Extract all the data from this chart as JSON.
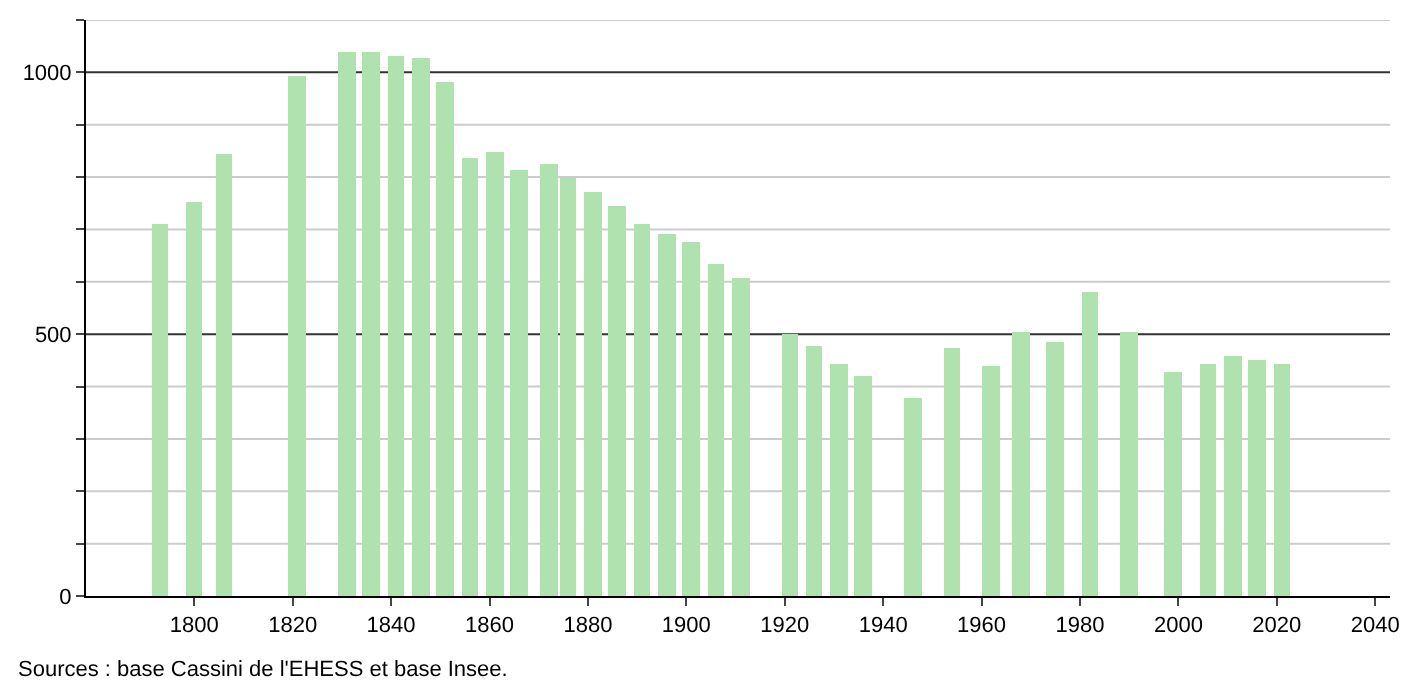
{
  "chart_data": {
    "type": "bar",
    "x": [
      1793,
      1800,
      1806,
      1821,
      1831,
      1836,
      1841,
      1846,
      1851,
      1856,
      1861,
      1866,
      1872,
      1876,
      1881,
      1886,
      1891,
      1896,
      1901,
      1906,
      1911,
      1921,
      1926,
      1931,
      1936,
      1946,
      1954,
      1962,
      1968,
      1975,
      1982,
      1990,
      1999,
      2006,
      2011,
      2016,
      2021
    ],
    "values": [
      711,
      753,
      843,
      992,
      1037,
      1038,
      1030,
      1028,
      982,
      835,
      849,
      815,
      825,
      799,
      773,
      746,
      711,
      693,
      676,
      635,
      609,
      501,
      478,
      444,
      421,
      377,
      475,
      438,
      504,
      484,
      581,
      505,
      429,
      444,
      459,
      449,
      444
    ],
    "color": "#b0e2b0",
    "xlim": [
      1778,
      2043
    ],
    "xticks": [
      1800,
      1820,
      1840,
      1860,
      1880,
      1900,
      1920,
      1940,
      1960,
      1980,
      2000,
      2020,
      2040
    ],
    "ylim": [
      0,
      1100
    ],
    "yticks": [
      0,
      {
        "value": 100,
        "label": null
      },
      {
        "value": 200,
        "label": null
      },
      {
        "value": 300,
        "label": null
      },
      {
        "value": 400,
        "label": null
      },
      500,
      {
        "value": 600,
        "label": null
      },
      {
        "value": 700,
        "label": null
      },
      {
        "value": 800,
        "label": null
      },
      {
        "value": 900,
        "label": null
      },
      1000,
      {
        "value": 1100,
        "label": null
      }
    ],
    "grid": "y",
    "annotations": [
      "Sources : base Cassini de l'EHESS et base Insee."
    ]
  }
}
